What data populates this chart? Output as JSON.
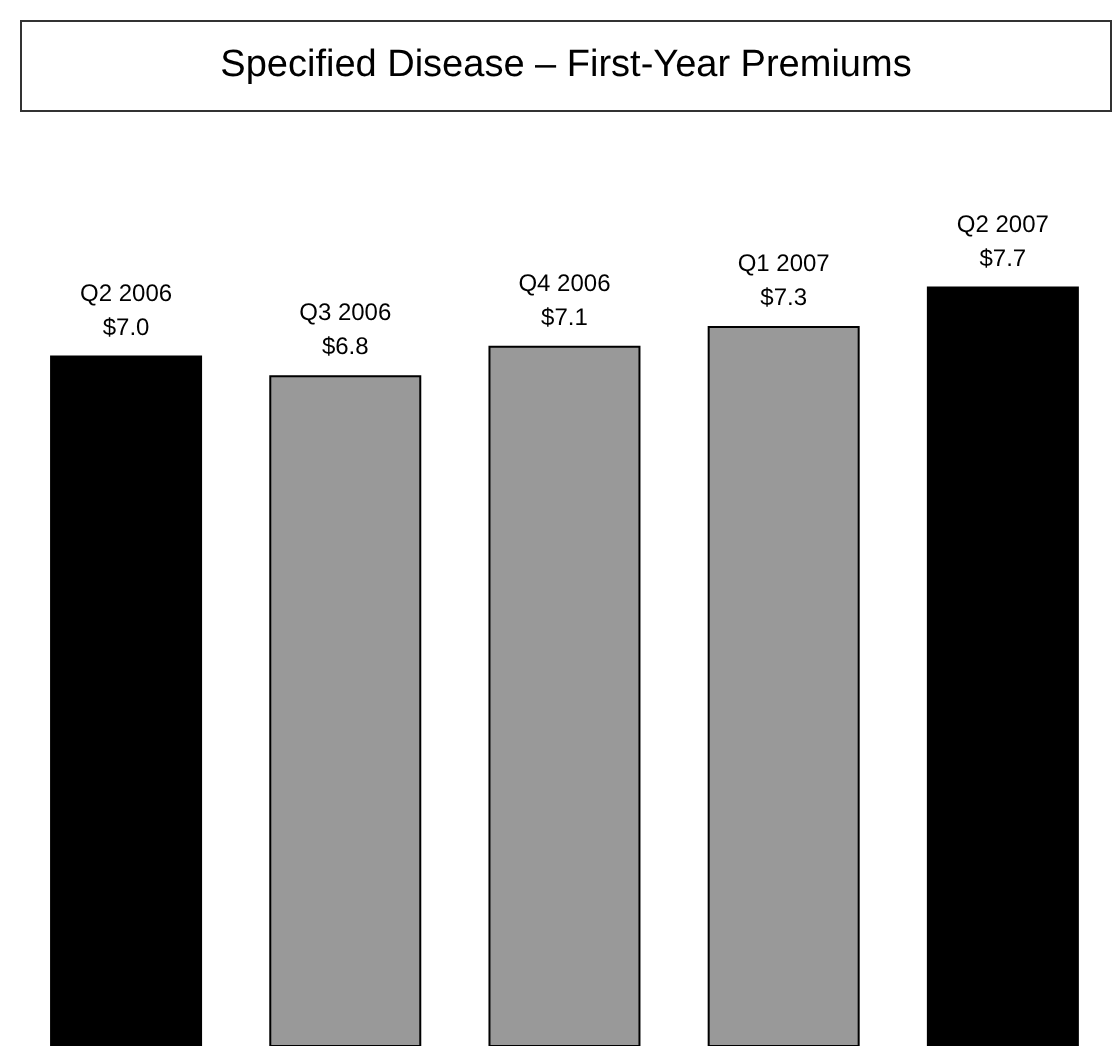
{
  "chart_data": {
    "type": "bar",
    "title": "Specified Disease  – First-Year Premiums",
    "categories": [
      "Q2 2006",
      "Q3 2006",
      "Q4 2006",
      "Q1 2007",
      "Q2 2007"
    ],
    "values": [
      7.0,
      6.8,
      7.1,
      7.3,
      7.7
    ],
    "value_labels": [
      "$7.0",
      "$6.8",
      "$7.1",
      "$7.3",
      "$7.7"
    ],
    "colors": [
      "#000000",
      "#999999",
      "#999999",
      "#999999",
      "#000000"
    ],
    "tick_labels": false,
    "grid": false,
    "legend": false
  }
}
